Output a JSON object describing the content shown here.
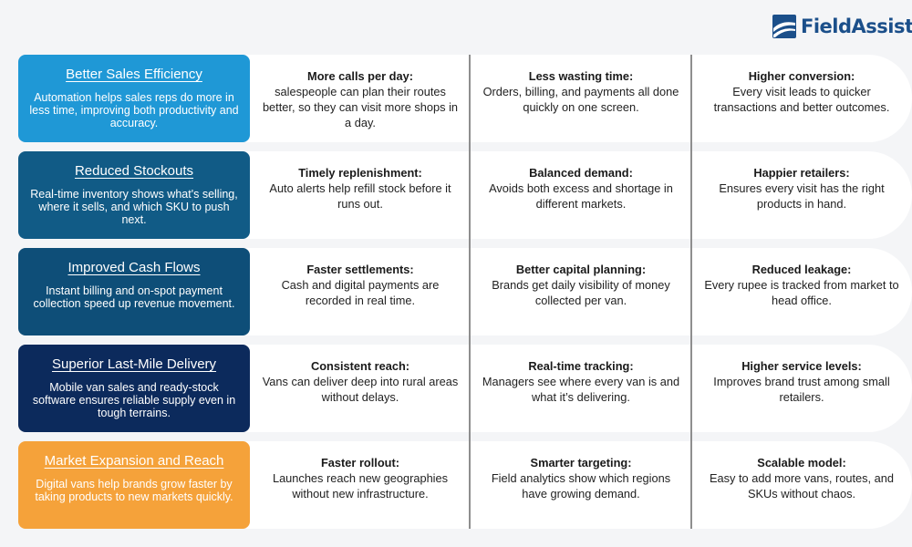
{
  "brand": {
    "name": "FieldAssist",
    "logo_color": "#1b4f8a"
  },
  "rows": [
    {
      "title": "Better Sales Efficiency",
      "description": "Automation helps sales reps do more in less time, improving both productivity and accuracy.",
      "color": "#1f98d6",
      "cells": [
        {
          "heading": "More calls per day:",
          "text": "salespeople can plan their routes better, so they can visit more shops in a day."
        },
        {
          "heading": "Less wasting time:",
          "text": "Orders, billing, and payments all done quickly on one screen."
        },
        {
          "heading": "Higher conversion:",
          "text": "Every visit leads to quicker transactions and better outcomes."
        }
      ]
    },
    {
      "title": "Reduced Stockouts",
      "description": "Real-time inventory shows what's selling, where it sells, and which SKU to push next.",
      "color": "#115b86",
      "cells": [
        {
          "heading": "Timely replenishment:",
          "text": "Auto alerts help refill stock before it runs out."
        },
        {
          "heading": "Balanced demand:",
          "text": "Avoids both excess and shortage in different markets."
        },
        {
          "heading": "Happier retailers:",
          "text": "Ensures every visit has the right products in hand."
        }
      ]
    },
    {
      "title": "Improved Cash Flows",
      "description": "Instant billing and on-spot payment collection speed up revenue movement.",
      "color": "#0e4e78",
      "cells": [
        {
          "heading": "Faster settlements:",
          "text": "Cash and digital payments are recorded in real time."
        },
        {
          "heading": "Better capital planning:",
          "text": "Brands get daily visibility of money collected per van."
        },
        {
          "heading": "Reduced leakage:",
          "text": "Every rupee is tracked from market to head office."
        }
      ]
    },
    {
      "title": "Superior Last-Mile Delivery",
      "description": "Mobile van sales and ready-stock software ensures reliable supply even in tough terrains.",
      "color": "#0c2a5c",
      "cells": [
        {
          "heading": "Consistent reach:",
          "text": "Vans can deliver deep into rural areas without delays."
        },
        {
          "heading": "Real-time tracking:",
          "text": "Managers see where every van is and what it’s delivering."
        },
        {
          "heading": "Higher service levels:",
          "text": "Improves brand trust among small retailers."
        }
      ]
    },
    {
      "title": "Market Expansion and Reach",
      "description": "Digital vans help brands grow faster by taking products to new markets quickly.",
      "color": "#f5a23a",
      "cells": [
        {
          "heading": "Faster rollout:",
          "text": "Launches reach new geographies without new infrastructure."
        },
        {
          "heading": "Smarter targeting:",
          "text": "Field analytics show which regions have growing demand."
        },
        {
          "heading": "Scalable model:",
          "text": "Easy to add more vans, routes, and SKUs without chaos."
        }
      ]
    }
  ]
}
